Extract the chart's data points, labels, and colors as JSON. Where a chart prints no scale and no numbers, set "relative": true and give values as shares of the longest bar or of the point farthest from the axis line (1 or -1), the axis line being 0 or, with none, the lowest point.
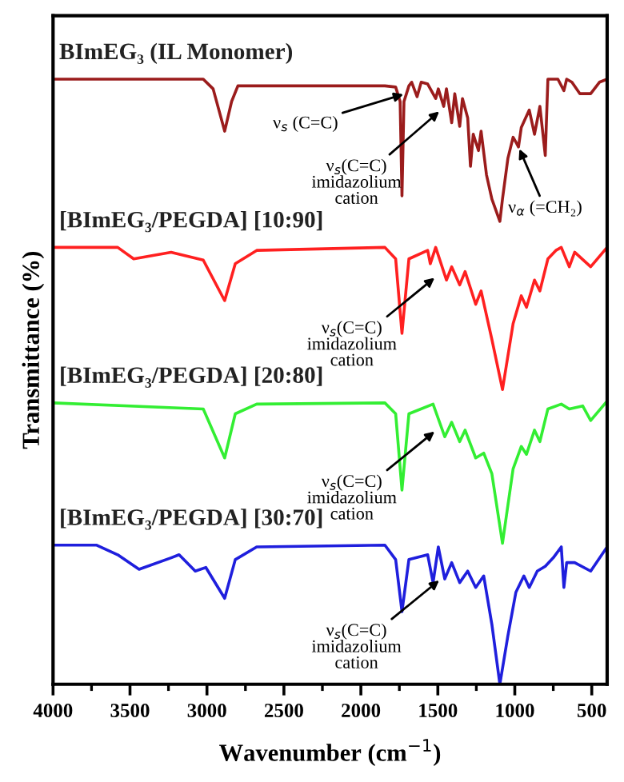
{
  "chart_data": {
    "type": "line",
    "relative": true,
    "xlabel": "Wavenumber (cm$^{−1}$)",
    "ylabel": "Transmittance (%)",
    "xlim": [
      4000,
      400
    ],
    "xticks": [
      4000,
      {
        "value": 3750,
        "label": null
      },
      3500,
      {
        "value": 3250,
        "label": null
      },
      3000,
      {
        "value": 2750,
        "label": null
      },
      2500,
      {
        "value": 2250,
        "label": null
      },
      2000,
      {
        "value": 1750,
        "label": null
      },
      1500,
      {
        "value": 1250,
        "label": null
      },
      1000,
      {
        "value": 750,
        "label": null
      },
      500
    ],
    "tick_labels": "x",
    "grid": false,
    "legend": false,
    "line_style": "solid",
    "marker": "none",
    "series": [
      {
        "name": "BImEG₃ (IL Monomer)",
        "color": "#9b1c1c",
        "x": [
          4000,
          3100,
          3024,
          2960,
          2885,
          2840,
          2799,
          1844,
          1774,
          1745,
          1733,
          1720,
          1688,
          1670,
          1635,
          1608,
          1566,
          1514,
          1497,
          1462,
          1444,
          1410,
          1390,
          1358,
          1340,
          1306,
          1288,
          1270,
          1236,
          1219,
          1184,
          1149,
          1097,
          1080,
          1045,
          1011,
          993,
          976,
          958,
          906,
          872,
          837,
          802,
          785,
          720,
          681,
          663,
          629,
          577,
          507,
          450,
          400
        ],
        "values": [
          1,
          1,
          1,
          0.984,
          0.914,
          0.963,
          0.989,
          0.989,
          0.987,
          0.963,
          0.807,
          0.963,
          0.989,
          0.995,
          0.971,
          0.995,
          0.992,
          0.968,
          0.984,
          0.955,
          0.984,
          0.928,
          0.976,
          0.922,
          0.968,
          0.936,
          0.856,
          0.909,
          0.882,
          0.914,
          0.842,
          0.802,
          0.765,
          0.802,
          0.869,
          0.904,
          0.896,
          0.888,
          0.92,
          0.949,
          0.909,
          0.955,
          0.874,
          1,
          1,
          0.981,
          1,
          0.995,
          0.976,
          0.976,
          0.995,
          1
        ]
      },
      {
        "name": "[BImEG₃/PEGDA] [10:90]",
        "color": "#ff2020",
        "x": [
          4000,
          3580,
          3476,
          3233,
          3024,
          2885,
          2816,
          2677,
          1844,
          1774,
          1733,
          1688,
          1566,
          1549,
          1514,
          1444,
          1410,
          1358,
          1323,
          1254,
          1219,
          1149,
          1080,
          1011,
          958,
          924,
          872,
          837,
          785,
          733,
          698,
          646,
          611,
          507,
          400
        ],
        "values": [
          0.722,
          0.722,
          0.703,
          0.714,
          0.701,
          0.634,
          0.695,
          0.717,
          0.722,
          0.703,
          0.58,
          0.703,
          0.717,
          0.695,
          0.722,
          0.668,
          0.69,
          0.66,
          0.682,
          0.628,
          0.65,
          0.57,
          0.487,
          0.596,
          0.642,
          0.623,
          0.668,
          0.65,
          0.703,
          0.717,
          0.722,
          0.69,
          0.714,
          0.69,
          0.722
        ]
      },
      {
        "name": "[BImEG₃/PEGDA] [20:80]",
        "color": "#33ee33",
        "x": [
          4000,
          3024,
          2885,
          2816,
          2677,
          1844,
          1774,
          1733,
          1688,
          1531,
          1455,
          1410,
          1358,
          1323,
          1254,
          1202,
          1149,
          1080,
          1011,
          958,
          924,
          872,
          837,
          785,
          698,
          646,
          559,
          507,
          400
        ],
        "values": [
          0.465,
          0.455,
          0.374,
          0.447,
          0.463,
          0.465,
          0.447,
          0.321,
          0.447,
          0.463,
          0.409,
          0.433,
          0.401,
          0.42,
          0.374,
          0.382,
          0.348,
          0.233,
          0.356,
          0.393,
          0.38,
          0.42,
          0.401,
          0.455,
          0.463,
          0.455,
          0.46,
          0.436,
          0.468
        ]
      },
      {
        "name": "[BImEG₃/PEGDA] [30:70]",
        "color": "#1f1fdd",
        "x": [
          4000,
          3719,
          3580,
          3441,
          3233,
          3181,
          3076,
          3007,
          2885,
          2816,
          2677,
          1844,
          1774,
          1733,
          1688,
          1566,
          1531,
          1497,
          1455,
          1410,
          1358,
          1306,
          1254,
          1202,
          1149,
          1097,
          1045,
          993,
          941,
          906,
          854,
          802,
          750,
          698,
          681,
          663,
          611,
          507,
          400
        ],
        "values": [
          0.23,
          0.23,
          0.214,
          0.19,
          0.209,
          0.214,
          0.187,
          0.193,
          0.142,
          0.206,
          0.227,
          0.23,
          0.206,
          0.12,
          0.206,
          0.214,
          0.168,
          0.227,
          0.174,
          0.201,
          0.168,
          0.187,
          0.16,
          0.179,
          0.099,
          0,
          0.08,
          0.152,
          0.179,
          0.16,
          0.187,
          0.195,
          0.209,
          0.227,
          0.16,
          0.201,
          0.201,
          0.187,
          0.227
        ]
      }
    ],
    "annotations": [
      {
        "text": "ν$_{s}$ (C=C)",
        "x": 1710,
        "y": 0.976
      },
      {
        "text": "ν$_{s}$(C=C)\nimidazolium\ncation",
        "x": 1480,
        "y": 0.949
      },
      {
        "text": "ν$_{α}$ (=CH₂)",
        "x": 976,
        "y": 0.888
      },
      {
        "text": "ν$_{s}$(C=C)\nimidazolium\ncation",
        "x": 1510,
        "y": 0.674
      },
      {
        "text": "ν$_{s}$(C=C)\nimidazolium\ncation",
        "x": 1510,
        "y": 0.42
      },
      {
        "text": "ν$_{s}$(C=C)\nimidazolium\ncation",
        "x": 1480,
        "y": 0.174
      }
    ]
  }
}
